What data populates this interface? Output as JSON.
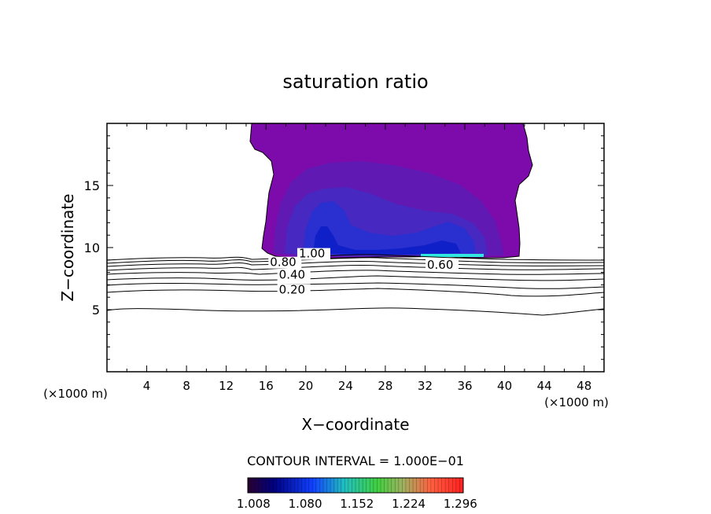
{
  "chart_data": {
    "type": "contour",
    "title": "saturation ratio",
    "xlabel": "X−coordinate",
    "ylabel": "Z−coordinate",
    "x_unit_left": "(×1000 m)",
    "x_unit_right": "(×1000 m)",
    "xlim": [
      0,
      50
    ],
    "ylim": [
      0,
      20
    ],
    "x_ticks": [
      4,
      8,
      12,
      16,
      20,
      24,
      28,
      32,
      36,
      40,
      44,
      48
    ],
    "y_ticks": [
      5,
      10,
      15
    ],
    "contour_interval_label": "CONTOUR INTERVAL = 1.000E−01",
    "contour_labels": [
      {
        "text": "0.80",
        "x": 16.4,
        "z": 8.5
      },
      {
        "text": "1.00",
        "x": 19.3,
        "z": 9.2
      },
      {
        "text": "0.60",
        "x": 32.2,
        "z": 8.3
      },
      {
        "text": "0.40",
        "x": 17.3,
        "z": 7.5
      },
      {
        "text": "0.20",
        "x": 17.3,
        "z": 6.3
      }
    ],
    "colorbar": {
      "ticks": [
        "1.008",
        "1.080",
        "1.152",
        "1.224",
        "1.296"
      ],
      "range": [
        1.0,
        1.3
      ]
    },
    "colors": {
      "fill_outer": "#7d0aab",
      "fill_mid": "#6119b4",
      "fill_inner": "#4728c0",
      "fill_core": "#2a2fcf",
      "fill_deep": "#1020c8",
      "streak": "#30e8e0"
    }
  }
}
